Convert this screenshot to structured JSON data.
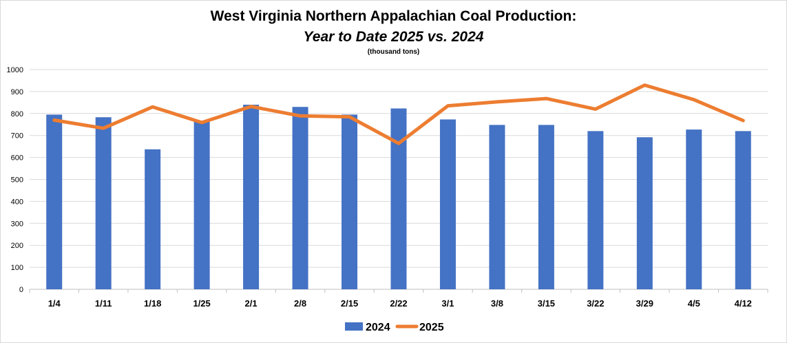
{
  "chart_data": {
    "type": "bar+line",
    "title": "West Virginia Northern Appalachian Coal Production:",
    "subtitle": "Year to Date 2025 vs. 2024",
    "units_note": "(thousand tons)",
    "categories": [
      "1/4",
      "1/11",
      "1/18",
      "1/25",
      "2/1",
      "2/8",
      "2/15",
      "2/22",
      "3/1",
      "3/8",
      "3/15",
      "3/22",
      "3/29",
      "4/5",
      "4/12"
    ],
    "series": [
      {
        "name": "2024",
        "type": "bar",
        "color": "#4472c4",
        "values": [
          795,
          783,
          637,
          768,
          840,
          830,
          795,
          823,
          773,
          748,
          748,
          720,
          692,
          727,
          720
        ]
      },
      {
        "name": "2025",
        "type": "line",
        "color": "#ed7d31",
        "values": [
          770,
          733,
          830,
          759,
          832,
          789,
          785,
          664,
          835,
          853,
          868,
          820,
          929,
          863,
          768
        ]
      }
    ],
    "ylim": [
      0,
      1000
    ],
    "yticks": [
      0,
      100,
      200,
      300,
      400,
      500,
      600,
      700,
      800,
      900,
      1000
    ],
    "grid": true,
    "legend": "bottom-center"
  }
}
